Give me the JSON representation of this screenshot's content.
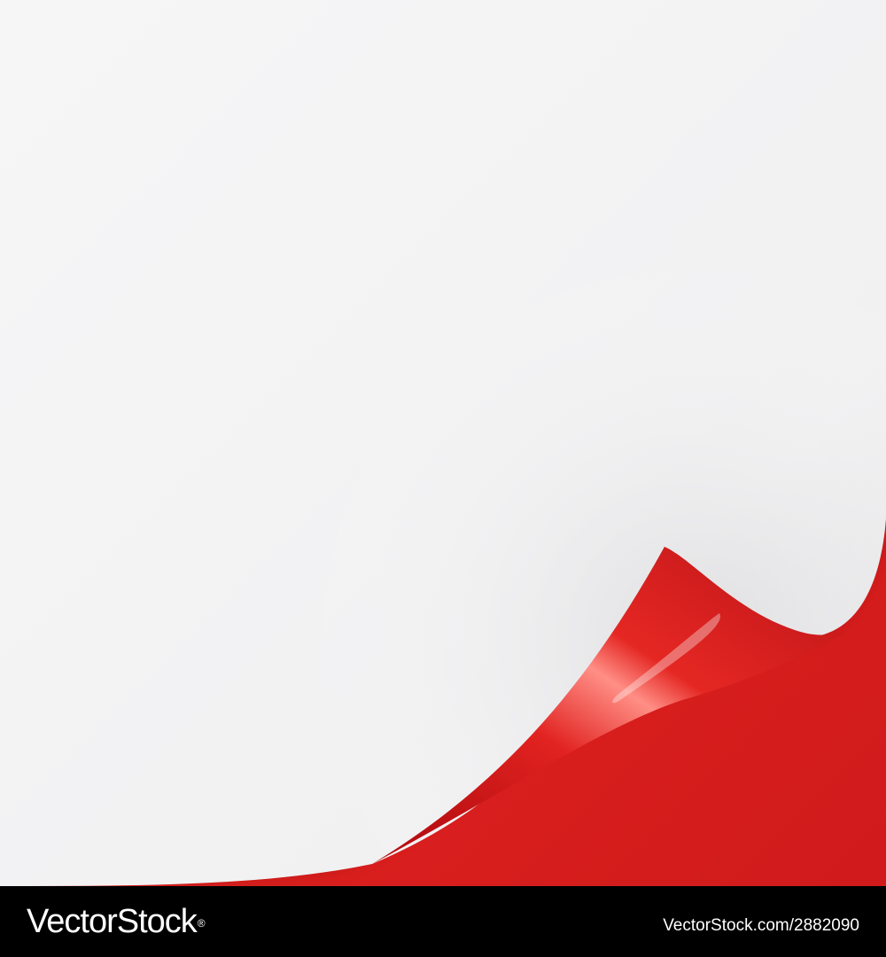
{
  "artwork": {
    "subject": "curled-paper-corner",
    "colors": {
      "paper": "#f4f4f5",
      "paper_shadow": "#d8d8da",
      "accent_red": "#e52222",
      "accent_red_dark": "#c41515",
      "footer": "#000000"
    }
  },
  "footer": {
    "logo_text": "VectorStock",
    "logo_mark": "®",
    "image_id": "VectorStock.com/2882090"
  }
}
